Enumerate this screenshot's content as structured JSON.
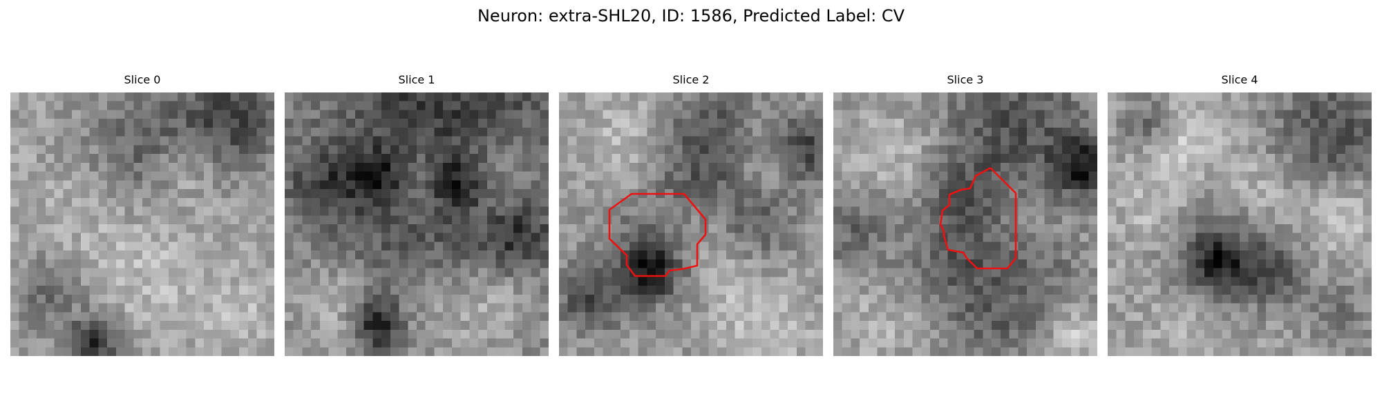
{
  "figure": {
    "title": "Neuron: extra-SHL20, ID: 1586, Predicted Label: CV"
  },
  "slices": [
    {
      "title": "Slice 0"
    },
    {
      "title": "Slice 1"
    },
    {
      "title": "Slice 2"
    },
    {
      "title": "Slice 3"
    },
    {
      "title": "Slice 4"
    }
  ],
  "colors": {
    "contour": "#ee1111",
    "background": "#ffffff",
    "colormap": "gray"
  }
}
